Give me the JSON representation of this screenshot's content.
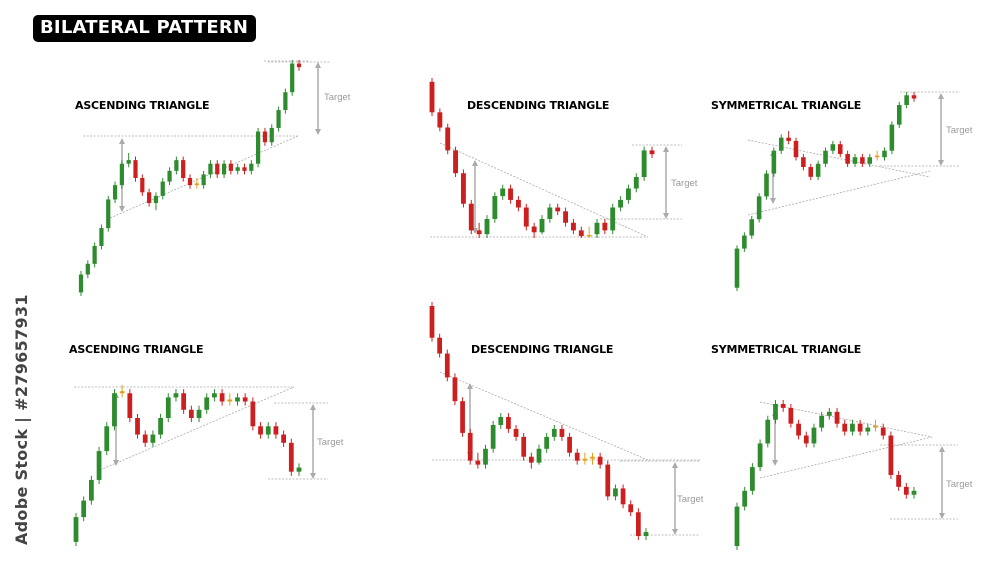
{
  "header": {
    "title": "BILATERAL PATTERN"
  },
  "watermark": {
    "id_text": "Adobe Stock | #279657931"
  },
  "colors": {
    "bull": "#2e8b2e",
    "bear": "#cc1f1f",
    "doji": "#e0a020",
    "guide": "#aaaaaa",
    "target_arrow": "#aaaaaa"
  },
  "chart_data": [
    {
      "type": "candlestick",
      "title": "ASCENDING TRIANGLE",
      "target_label": "Target",
      "breakout": "up",
      "candles": [
        {
          "o": 10,
          "c": 15,
          "h": 16,
          "l": 9
        },
        {
          "o": 15,
          "c": 18,
          "h": 19,
          "l": 14
        },
        {
          "o": 18,
          "c": 23,
          "h": 24,
          "l": 17
        },
        {
          "o": 23,
          "c": 28,
          "h": 29,
          "l": 22
        },
        {
          "o": 28,
          "c": 36,
          "h": 37,
          "l": 27
        },
        {
          "o": 36,
          "c": 40,
          "h": 41,
          "l": 35
        },
        {
          "o": 40,
          "c": 46,
          "h": 47,
          "l": 39
        },
        {
          "o": 46,
          "c": 47,
          "h": 49,
          "l": 45
        },
        {
          "o": 47,
          "c": 42,
          "h": 48,
          "l": 41
        },
        {
          "o": 42,
          "c": 38,
          "h": 43,
          "l": 37
        },
        {
          "o": 38,
          "c": 35,
          "h": 39,
          "l": 34
        },
        {
          "o": 35,
          "c": 37,
          "h": 38,
          "l": 33
        },
        {
          "o": 37,
          "c": 41,
          "h": 42,
          "l": 36
        },
        {
          "o": 41,
          "c": 44,
          "h": 45,
          "l": 40
        },
        {
          "o": 44,
          "c": 47,
          "h": 48,
          "l": 43
        },
        {
          "o": 47,
          "c": 42,
          "h": 48,
          "l": 41
        },
        {
          "o": 42,
          "c": 40,
          "h": 43,
          "l": 39
        },
        {
          "o": 40,
          "c": 40.5,
          "h": 42,
          "l": 39
        },
        {
          "o": 40,
          "c": 43,
          "h": 44,
          "l": 39
        },
        {
          "o": 43,
          "c": 46,
          "h": 47,
          "l": 42
        },
        {
          "o": 46,
          "c": 43,
          "h": 47,
          "l": 42
        },
        {
          "o": 43,
          "c": 46,
          "h": 47,
          "l": 42
        },
        {
          "o": 46,
          "c": 44,
          "h": 47,
          "l": 43
        },
        {
          "o": 44,
          "c": 45,
          "h": 46,
          "l": 43
        },
        {
          "o": 45,
          "c": 44,
          "h": 46,
          "l": 43
        },
        {
          "o": 44,
          "c": 46,
          "h": 47,
          "l": 43
        },
        {
          "o": 46,
          "c": 55,
          "h": 56,
          "l": 45
        },
        {
          "o": 55,
          "c": 52,
          "h": 56,
          "l": 51
        },
        {
          "o": 52,
          "c": 56,
          "h": 57,
          "l": 51
        },
        {
          "o": 56,
          "c": 61,
          "h": 62,
          "l": 55
        },
        {
          "o": 61,
          "c": 66,
          "h": 67,
          "l": 60
        },
        {
          "o": 66,
          "c": 74,
          "h": 75,
          "l": 65
        },
        {
          "o": 74,
          "c": 73,
          "h": 75,
          "l": 72
        }
      ]
    },
    {
      "type": "candlestick",
      "title": "DESCENDING TRIANGLE",
      "target_label": "Target",
      "breakout": "up",
      "candles": [
        {
          "o": 88,
          "c": 80,
          "h": 89,
          "l": 79
        },
        {
          "o": 80,
          "c": 76,
          "h": 81,
          "l": 75
        },
        {
          "o": 76,
          "c": 70,
          "h": 77,
          "l": 69
        },
        {
          "o": 70,
          "c": 64,
          "h": 71,
          "l": 63
        },
        {
          "o": 64,
          "c": 56,
          "h": 65,
          "l": 55
        },
        {
          "o": 56,
          "c": 49,
          "h": 57,
          "l": 48
        },
        {
          "o": 49,
          "c": 48,
          "h": 51,
          "l": 47
        },
        {
          "o": 48,
          "c": 52,
          "h": 53,
          "l": 47
        },
        {
          "o": 52,
          "c": 58,
          "h": 59,
          "l": 51
        },
        {
          "o": 58,
          "c": 60,
          "h": 61,
          "l": 57
        },
        {
          "o": 60,
          "c": 57,
          "h": 61,
          "l": 56
        },
        {
          "o": 57,
          "c": 55,
          "h": 58,
          "l": 54
        },
        {
          "o": 55,
          "c": 50,
          "h": 56,
          "l": 49
        },
        {
          "o": 50,
          "c": 48.5,
          "h": 51,
          "l": 47
        },
        {
          "o": 48.5,
          "c": 52,
          "h": 53,
          "l": 48
        },
        {
          "o": 52,
          "c": 55,
          "h": 56,
          "l": 51
        },
        {
          "o": 55,
          "c": 54,
          "h": 56,
          "l": 53
        },
        {
          "o": 54,
          "c": 51,
          "h": 55,
          "l": 50
        },
        {
          "o": 51,
          "c": 49,
          "h": 52,
          "l": 48
        },
        {
          "o": 49,
          "c": 47.5,
          "h": 50,
          "l": 47
        },
        {
          "o": 47.5,
          "c": 47.8,
          "h": 50,
          "l": 47
        },
        {
          "o": 48,
          "c": 51,
          "h": 52,
          "l": 47
        },
        {
          "o": 51,
          "c": 49,
          "h": 52,
          "l": 48
        },
        {
          "o": 49,
          "c": 55,
          "h": 56,
          "l": 48
        },
        {
          "o": 55,
          "c": 57,
          "h": 58,
          "l": 54
        },
        {
          "o": 57,
          "c": 60,
          "h": 61,
          "l": 56
        },
        {
          "o": 60,
          "c": 63,
          "h": 64,
          "l": 59
        },
        {
          "o": 63,
          "c": 70,
          "h": 71,
          "l": 62
        },
        {
          "o": 70,
          "c": 69,
          "h": 71,
          "l": 68
        }
      ]
    },
    {
      "type": "candlestick",
      "title": "SYMMETRICAL TRIANGLE",
      "target_label": "Target",
      "breakout": "up",
      "candles": [
        {
          "o": 10,
          "c": 22,
          "h": 23,
          "l": 9
        },
        {
          "o": 22,
          "c": 26,
          "h": 27,
          "l": 21
        },
        {
          "o": 26,
          "c": 31,
          "h": 32,
          "l": 25
        },
        {
          "o": 31,
          "c": 38,
          "h": 39,
          "l": 30
        },
        {
          "o": 38,
          "c": 45,
          "h": 46,
          "l": 37
        },
        {
          "o": 45,
          "c": 52,
          "h": 53,
          "l": 44
        },
        {
          "o": 52,
          "c": 56,
          "h": 57,
          "l": 51
        },
        {
          "o": 56,
          "c": 55,
          "h": 58,
          "l": 54
        },
        {
          "o": 55,
          "c": 50,
          "h": 56,
          "l": 49
        },
        {
          "o": 50,
          "c": 47,
          "h": 51,
          "l": 46
        },
        {
          "o": 47,
          "c": 44,
          "h": 48,
          "l": 43
        },
        {
          "o": 44,
          "c": 48,
          "h": 49,
          "l": 43
        },
        {
          "o": 48,
          "c": 52,
          "h": 53,
          "l": 47
        },
        {
          "o": 52,
          "c": 54,
          "h": 55,
          "l": 51
        },
        {
          "o": 54,
          "c": 51,
          "h": 55,
          "l": 50
        },
        {
          "o": 51,
          "c": 48,
          "h": 52,
          "l": 47
        },
        {
          "o": 48,
          "c": 50,
          "h": 51,
          "l": 47
        },
        {
          "o": 50,
          "c": 48,
          "h": 51,
          "l": 47
        },
        {
          "o": 48,
          "c": 50,
          "h": 51,
          "l": 47
        },
        {
          "o": 50,
          "c": 50.5,
          "h": 52,
          "l": 49
        },
        {
          "o": 50,
          "c": 52,
          "h": 53,
          "l": 49
        },
        {
          "o": 52,
          "c": 60,
          "h": 61,
          "l": 51
        },
        {
          "o": 60,
          "c": 66,
          "h": 67,
          "l": 59
        },
        {
          "o": 66,
          "c": 69,
          "h": 70,
          "l": 65
        },
        {
          "o": 69,
          "c": 68,
          "h": 70,
          "l": 67
        }
      ]
    },
    {
      "type": "candlestick",
      "title": "ASCENDING TRIANGLE",
      "target_label": "Target",
      "breakout": "down",
      "candles": [
        {
          "o": 10,
          "c": 16,
          "h": 17,
          "l": 9
        },
        {
          "o": 16,
          "c": 20,
          "h": 21,
          "l": 15
        },
        {
          "o": 20,
          "c": 25,
          "h": 26,
          "l": 19
        },
        {
          "o": 25,
          "c": 32,
          "h": 33,
          "l": 24
        },
        {
          "o": 32,
          "c": 38,
          "h": 39,
          "l": 31
        },
        {
          "o": 38,
          "c": 46,
          "h": 47,
          "l": 37
        },
        {
          "o": 46,
          "c": 46.5,
          "h": 48,
          "l": 45
        },
        {
          "o": 46,
          "c": 40,
          "h": 47,
          "l": 39
        },
        {
          "o": 40,
          "c": 36,
          "h": 41,
          "l": 35
        },
        {
          "o": 36,
          "c": 34,
          "h": 37,
          "l": 33
        },
        {
          "o": 34,
          "c": 36,
          "h": 37,
          "l": 33
        },
        {
          "o": 36,
          "c": 40,
          "h": 41,
          "l": 35
        },
        {
          "o": 40,
          "c": 45,
          "h": 46,
          "l": 39
        },
        {
          "o": 45,
          "c": 46,
          "h": 47,
          "l": 44
        },
        {
          "o": 46,
          "c": 42,
          "h": 47,
          "l": 41
        },
        {
          "o": 42,
          "c": 40,
          "h": 43,
          "l": 39
        },
        {
          "o": 40,
          "c": 42,
          "h": 43,
          "l": 39
        },
        {
          "o": 42,
          "c": 45,
          "h": 46,
          "l": 41
        },
        {
          "o": 45,
          "c": 46,
          "h": 47,
          "l": 44
        },
        {
          "o": 46,
          "c": 44,
          "h": 47,
          "l": 43
        },
        {
          "o": 44,
          "c": 44.5,
          "h": 46,
          "l": 43
        },
        {
          "o": 44,
          "c": 45,
          "h": 46,
          "l": 43
        },
        {
          "o": 45,
          "c": 44,
          "h": 46,
          "l": 43
        },
        {
          "o": 44,
          "c": 38,
          "h": 45,
          "l": 37
        },
        {
          "o": 38,
          "c": 36,
          "h": 39,
          "l": 35
        },
        {
          "o": 36,
          "c": 38,
          "h": 39,
          "l": 35
        },
        {
          "o": 38,
          "c": 36,
          "h": 39,
          "l": 35
        },
        {
          "o": 36,
          "c": 34,
          "h": 37,
          "l": 33
        },
        {
          "o": 34,
          "c": 27,
          "h": 35,
          "l": 26
        },
        {
          "o": 27,
          "c": 28,
          "h": 29,
          "l": 26
        }
      ]
    },
    {
      "type": "candlestick",
      "title": "DESCENDING TRIANGLE",
      "target_label": "Target",
      "breakout": "down",
      "candles": [
        {
          "o": 88,
          "c": 80,
          "h": 89,
          "l": 79
        },
        {
          "o": 80,
          "c": 76,
          "h": 81,
          "l": 75
        },
        {
          "o": 76,
          "c": 70,
          "h": 77,
          "l": 69
        },
        {
          "o": 70,
          "c": 64,
          "h": 71,
          "l": 63
        },
        {
          "o": 64,
          "c": 56,
          "h": 65,
          "l": 55
        },
        {
          "o": 56,
          "c": 49,
          "h": 57,
          "l": 48
        },
        {
          "o": 49,
          "c": 48,
          "h": 51,
          "l": 47
        },
        {
          "o": 48,
          "c": 52,
          "h": 53,
          "l": 47
        },
        {
          "o": 52,
          "c": 58,
          "h": 59,
          "l": 51
        },
        {
          "o": 58,
          "c": 60,
          "h": 61,
          "l": 57
        },
        {
          "o": 60,
          "c": 57,
          "h": 61,
          "l": 56
        },
        {
          "o": 57,
          "c": 55,
          "h": 58,
          "l": 54
        },
        {
          "o": 55,
          "c": 50,
          "h": 56,
          "l": 49
        },
        {
          "o": 50,
          "c": 48.5,
          "h": 51,
          "l": 47
        },
        {
          "o": 48.5,
          "c": 52,
          "h": 53,
          "l": 48
        },
        {
          "o": 52,
          "c": 55,
          "h": 56,
          "l": 51
        },
        {
          "o": 55,
          "c": 57,
          "h": 58,
          "l": 54
        },
        {
          "o": 57,
          "c": 55,
          "h": 58,
          "l": 54
        },
        {
          "o": 55,
          "c": 51,
          "h": 56,
          "l": 50
        },
        {
          "o": 51,
          "c": 49,
          "h": 52,
          "l": 48
        },
        {
          "o": 49,
          "c": 49.5,
          "h": 51,
          "l": 48
        },
        {
          "o": 49.5,
          "c": 50,
          "h": 51,
          "l": 48
        },
        {
          "o": 50,
          "c": 48,
          "h": 51,
          "l": 47
        },
        {
          "o": 48,
          "c": 40,
          "h": 49,
          "l": 39
        },
        {
          "o": 40,
          "c": 42,
          "h": 43,
          "l": 39
        },
        {
          "o": 42,
          "c": 38,
          "h": 43,
          "l": 37
        },
        {
          "o": 38,
          "c": 36,
          "h": 39,
          "l": 35
        },
        {
          "o": 36,
          "c": 30,
          "h": 37,
          "l": 29
        },
        {
          "o": 30,
          "c": 31,
          "h": 32,
          "l": 29
        }
      ]
    },
    {
      "type": "candlestick",
      "title": "SYMMETRICAL TRIANGLE",
      "target_label": "Target",
      "breakout": "down",
      "candles": [
        {
          "o": 10,
          "c": 20,
          "h": 21,
          "l": 9
        },
        {
          "o": 20,
          "c": 24,
          "h": 25,
          "l": 19
        },
        {
          "o": 24,
          "c": 30,
          "h": 31,
          "l": 23
        },
        {
          "o": 30,
          "c": 36,
          "h": 37,
          "l": 29
        },
        {
          "o": 36,
          "c": 42,
          "h": 43,
          "l": 35
        },
        {
          "o": 42,
          "c": 46,
          "h": 47,
          "l": 41
        },
        {
          "o": 46,
          "c": 45,
          "h": 47,
          "l": 44
        },
        {
          "o": 45,
          "c": 41,
          "h": 46,
          "l": 40
        },
        {
          "o": 41,
          "c": 38,
          "h": 42,
          "l": 37
        },
        {
          "o": 38,
          "c": 36,
          "h": 39,
          "l": 35
        },
        {
          "o": 36,
          "c": 40,
          "h": 41,
          "l": 35
        },
        {
          "o": 40,
          "c": 43,
          "h": 44,
          "l": 39
        },
        {
          "o": 43,
          "c": 44,
          "h": 45,
          "l": 42
        },
        {
          "o": 44,
          "c": 41,
          "h": 45,
          "l": 40
        },
        {
          "o": 41,
          "c": 39,
          "h": 42,
          "l": 38
        },
        {
          "o": 39,
          "c": 41,
          "h": 42,
          "l": 38
        },
        {
          "o": 41,
          "c": 39,
          "h": 42,
          "l": 38
        },
        {
          "o": 39,
          "c": 40,
          "h": 41,
          "l": 38
        },
        {
          "o": 40,
          "c": 40.5,
          "h": 42,
          "l": 39
        },
        {
          "o": 40,
          "c": 38,
          "h": 41,
          "l": 37
        },
        {
          "o": 38,
          "c": 28,
          "h": 39,
          "l": 27
        },
        {
          "o": 28,
          "c": 25,
          "h": 29,
          "l": 24
        },
        {
          "o": 25,
          "c": 23,
          "h": 26,
          "l": 22
        },
        {
          "o": 23,
          "c": 24,
          "h": 25,
          "l": 22
        }
      ]
    }
  ]
}
